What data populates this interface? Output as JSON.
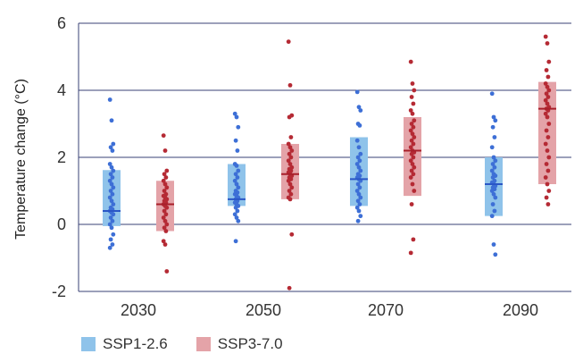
{
  "chart_data": {
    "type": "dot-box",
    "ylabel": "Temperature change (°C)",
    "xlabel": "",
    "ylim": [
      -2,
      6
    ],
    "yticks": [
      -2,
      0,
      2,
      4,
      6
    ],
    "categories": [
      "2030",
      "2050",
      "2070",
      "2090"
    ],
    "grid": true,
    "legend_position": "bottom-left",
    "series": [
      {
        "name": "SSP1-2.6",
        "box_color": "#8fc3ea",
        "dot_color": "#3d6fd6",
        "median_color": "#2a56c6",
        "boxes": [
          {
            "low": -0.05,
            "high": 1.62,
            "median": 0.4
          },
          {
            "low": 0.55,
            "high": 1.8,
            "median": 0.75
          },
          {
            "low": 0.55,
            "high": 2.6,
            "median": 1.35
          },
          {
            "low": 0.25,
            "high": 2.0,
            "median": 1.2
          }
        ],
        "points": [
          [
            3.72,
            3.1,
            2.4,
            2.3,
            2.2,
            1.8,
            1.7,
            1.6,
            1.5,
            1.4,
            1.3,
            1.2,
            1.1,
            1.0,
            0.9,
            0.8,
            0.7,
            0.6,
            0.5,
            0.45,
            0.4,
            0.35,
            0.3,
            0.2,
            0.1,
            0.0,
            -0.1,
            -0.3,
            -0.45,
            -0.6,
            -0.7
          ],
          [
            3.3,
            3.2,
            2.9,
            2.5,
            2.2,
            1.8,
            1.75,
            1.6,
            1.5,
            1.4,
            1.3,
            1.2,
            1.1,
            1.0,
            0.95,
            0.9,
            0.85,
            0.8,
            0.75,
            0.7,
            0.65,
            0.6,
            0.55,
            0.5,
            0.4,
            0.3,
            0.2,
            0.1,
            -0.5
          ],
          [
            3.95,
            3.5,
            3.4,
            3.0,
            2.95,
            2.5,
            2.3,
            2.1,
            2.0,
            1.9,
            1.8,
            1.7,
            1.6,
            1.5,
            1.45,
            1.4,
            1.35,
            1.3,
            1.2,
            1.1,
            1.0,
            0.9,
            0.8,
            0.7,
            0.6,
            0.5,
            0.4,
            0.25,
            0.1
          ],
          [
            3.9,
            3.2,
            3.1,
            2.9,
            2.6,
            2.3,
            2.0,
            1.9,
            1.8,
            1.7,
            1.6,
            1.5,
            1.45,
            1.4,
            1.3,
            1.25,
            1.2,
            1.15,
            1.1,
            1.05,
            1.0,
            0.9,
            0.8,
            0.6,
            0.4,
            0.25,
            -0.6,
            -0.9
          ]
        ]
      },
      {
        "name": "SSP3-7.0",
        "box_color": "#e4a3a8",
        "dot_color": "#b52a34",
        "median_color": "#a81f2a",
        "boxes": [
          {
            "low": -0.2,
            "high": 1.3,
            "median": 0.6
          },
          {
            "low": 0.75,
            "high": 2.4,
            "median": 1.5
          },
          {
            "low": 0.85,
            "high": 3.2,
            "median": 2.2
          },
          {
            "low": 1.2,
            "high": 4.25,
            "median": 3.45
          }
        ],
        "points": [
          [
            2.65,
            2.2,
            1.6,
            1.5,
            1.4,
            1.3,
            1.2,
            1.1,
            1.0,
            0.9,
            0.85,
            0.8,
            0.75,
            0.7,
            0.65,
            0.6,
            0.55,
            0.5,
            0.4,
            0.3,
            0.2,
            0.1,
            0.0,
            -0.1,
            -0.2,
            -0.5,
            -0.6,
            -1.4
          ],
          [
            5.45,
            4.15,
            3.25,
            3.2,
            2.6,
            2.4,
            2.3,
            2.2,
            2.1,
            2.0,
            1.9,
            1.8,
            1.7,
            1.65,
            1.6,
            1.55,
            1.5,
            1.45,
            1.4,
            1.35,
            1.3,
            1.2,
            1.1,
            1.0,
            0.9,
            0.8,
            0.75,
            -0.3,
            -1.9
          ],
          [
            4.85,
            4.2,
            4.0,
            3.8,
            3.6,
            3.4,
            3.3,
            3.1,
            3.0,
            2.9,
            2.8,
            2.7,
            2.6,
            2.5,
            2.4,
            2.3,
            2.2,
            2.15,
            2.1,
            2.0,
            1.9,
            1.8,
            1.7,
            1.6,
            1.5,
            1.4,
            1.2,
            1.0,
            0.6,
            -0.45,
            -0.85
          ],
          [
            5.6,
            5.4,
            4.85,
            4.6,
            4.4,
            4.2,
            4.1,
            4.0,
            3.9,
            3.8,
            3.7,
            3.6,
            3.5,
            3.45,
            3.4,
            3.3,
            3.2,
            3.0,
            2.8,
            2.6,
            2.4,
            2.2,
            2.0,
            1.8,
            1.6,
            1.4,
            1.2,
            1.0,
            0.8,
            0.6
          ]
        ]
      }
    ]
  },
  "legend": [
    {
      "label": "SSP1-2.6",
      "color": "#8fc3ea"
    },
    {
      "label": "SSP3-7.0",
      "color": "#e4a3a8"
    }
  ]
}
